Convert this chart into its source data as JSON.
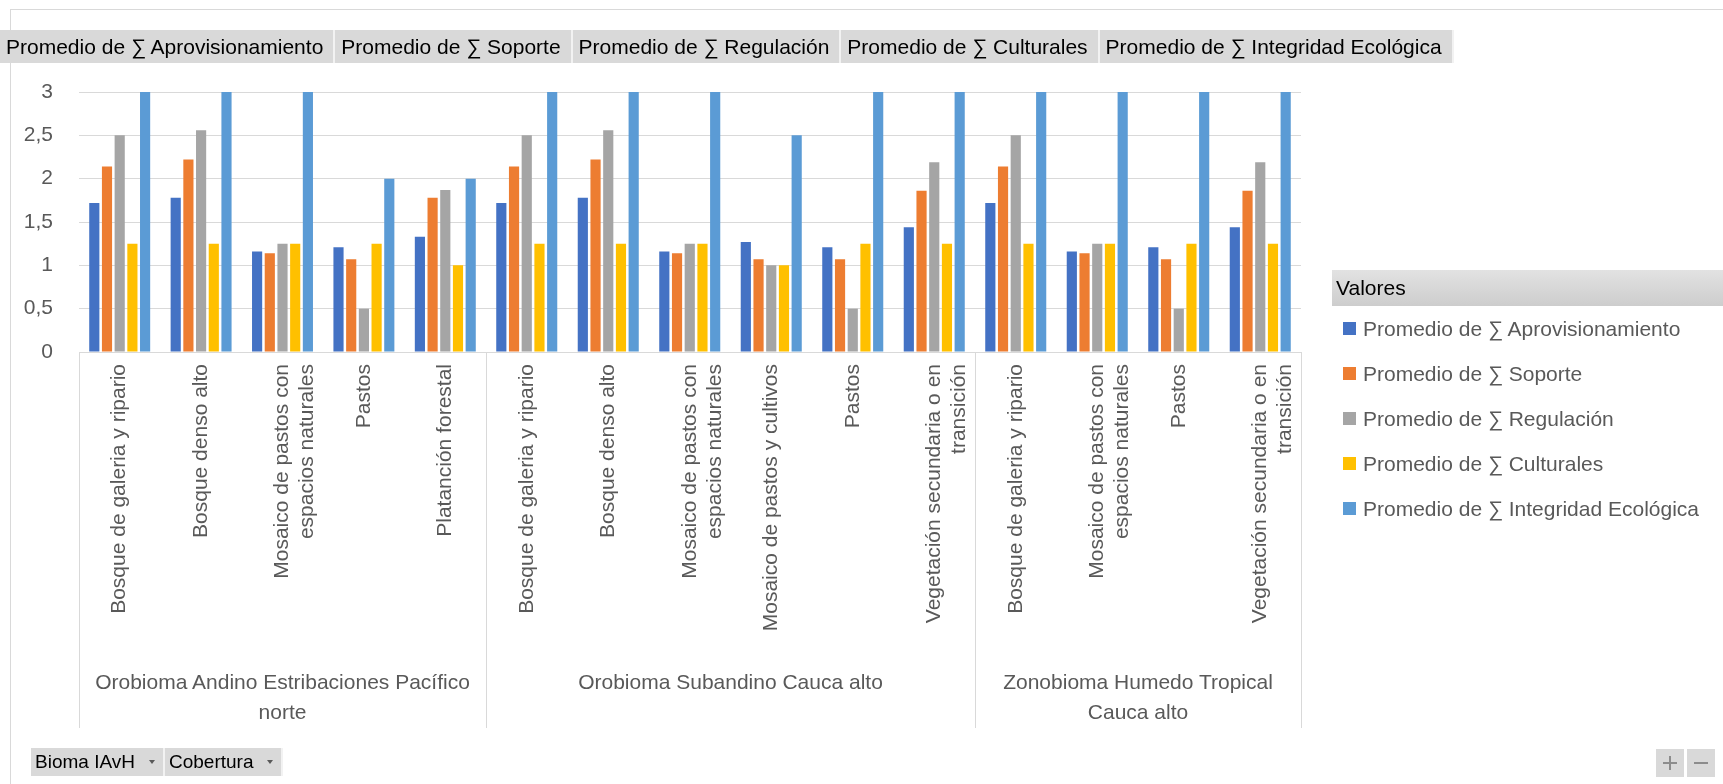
{
  "chart_data": [
    {
      "type": "bar",
      "xlabel": "Orobioma Andino Estribaciones Pacífico norte",
      "categories": [
        "Bosque de galeria y ripario",
        "Bosque denso alto",
        "Mosaico de pastos con espacios naturales",
        "Pastos",
        "Platanción forestal"
      ],
      "series": [
        {
          "color": "#4472c4",
          "values": [
            1.72,
            1.78,
            1.16,
            1.21,
            1.33
          ]
        },
        {
          "color": "#ed7d31",
          "values": [
            2.14,
            2.22,
            1.14,
            1.07,
            1.78
          ]
        },
        {
          "color": "#a5a5a5",
          "values": [
            2.5,
            2.56,
            1.25,
            0.5,
            1.87
          ]
        },
        {
          "color": "#ffc000",
          "values": [
            1.25,
            1.25,
            1.25,
            1.25,
            1
          ]
        },
        {
          "color": "#5b9bd5",
          "values": [
            3,
            3,
            3,
            2,
            2
          ]
        }
      ],
      "ylim": [
        0,
        3
      ],
      "yticks": [
        0,
        {
          "value": 0.5,
          "label": "0,5"
        },
        1,
        {
          "value": 1.5,
          "label": "1,5"
        },
        2,
        {
          "value": 2.5,
          "label": "2,5"
        },
        3
      ],
      "grid": "y",
      "annotations": [
        "Bioma IAvH",
        "Cobertura"
      ]
    },
    {
      "type": "bar",
      "xlabel": "Orobioma Subandino Cauca alto",
      "categories": [
        "Bosque de galeria y ripario",
        "Bosque denso alto",
        "Mosaico de pastos con espacios naturales",
        "Mosaico de pastos y cultivos",
        "Pastos",
        "Vegetación secundaria o en transición"
      ],
      "series": [
        {
          "color": "#4472c4",
          "values": [
            1.72,
            1.78,
            1.16,
            1.27,
            1.21,
            1.44
          ]
        },
        {
          "color": "#ed7d31",
          "values": [
            2.14,
            2.22,
            1.14,
            1.07,
            1.07,
            1.86
          ]
        },
        {
          "color": "#a5a5a5",
          "values": [
            2.5,
            2.56,
            1.25,
            1,
            0.5,
            2.19
          ]
        },
        {
          "color": "#ffc000",
          "values": [
            1.25,
            1.25,
            1.25,
            1,
            1.25,
            1.25
          ]
        },
        {
          "color": "#5b9bd5",
          "values": [
            3,
            3,
            3,
            2.5,
            3,
            3
          ]
        }
      ],
      "ylim": [
        0,
        3
      ],
      "yticks": [
        0,
        0.5,
        1,
        1.5,
        2,
        2.5,
        3
      ],
      "grid": "y",
      "tick_labels": "x"
    },
    {
      "type": "bar",
      "xlabel": "Zonobioma Humedo Tropical Cauca alto",
      "categories": [
        "Bosque de galeria y ripario",
        "Mosaico de pastos con espacios naturales",
        "Pastos",
        "Vegetación secundaria o en transición"
      ],
      "series": [
        {
          "name": "Promedio de ∑ Aprovisionamiento",
          "color": "#4472c4",
          "values": [
            1.72,
            1.16,
            1.21,
            1.44
          ]
        },
        {
          "name": "Promedio de ∑ Soporte",
          "color": "#ed7d31",
          "values": [
            2.14,
            1.14,
            1.07,
            1.86
          ]
        },
        {
          "name": "Promedio de ∑ Regulación",
          "color": "#a5a5a5",
          "values": [
            2.5,
            1.25,
            0.5,
            2.19
          ]
        },
        {
          "name": "Promedio de ∑ Culturales",
          "color": "#ffc000",
          "values": [
            1.25,
            1.25,
            1.25,
            1.25
          ]
        },
        {
          "name": "Promedio de ∑ Integridad Ecológica",
          "color": "#5b9bd5",
          "values": [
            3,
            3,
            3,
            3
          ]
        }
      ],
      "ylim": [
        0,
        3
      ],
      "yticks": [
        0,
        0.5,
        1,
        1.5,
        2,
        2.5,
        3
      ],
      "grid": "y",
      "tick_labels": "x",
      "legend": "right",
      "legend_title": "Valores"
    }
  ]
}
